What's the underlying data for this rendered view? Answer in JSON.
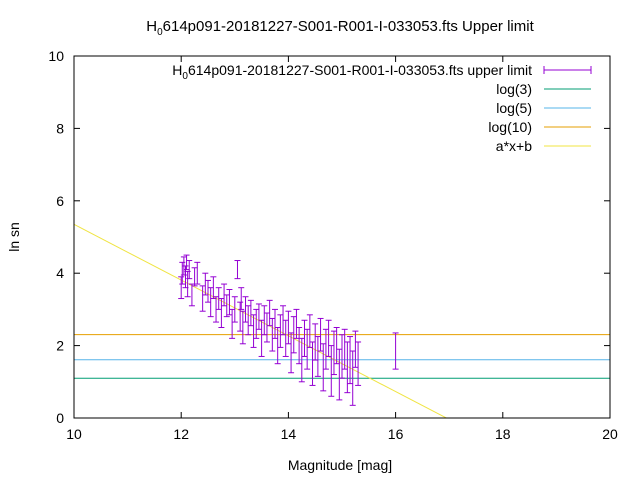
{
  "chart_data": {
    "type": "scatter",
    "title_parts": [
      "H",
      "0",
      "614p091-20181227-S001-R001-I-033053.fts Upper limit"
    ],
    "xlabel": "Magnitude [mag]",
    "ylabel": "ln sn",
    "xlim": [
      10,
      20
    ],
    "ylim": [
      0,
      10
    ],
    "x_ticks": [
      "10",
      "12",
      "14",
      "16",
      "18",
      "20"
    ],
    "y_ticks": [
      "0",
      "2",
      "4",
      "6",
      "8",
      "10"
    ],
    "grid": false,
    "legend_position": "top-right",
    "legend": [
      {
        "parts": [
          "H",
          "0",
          "614p091-20181227-S001-R001-I-033053.fts upper limit"
        ],
        "color": "#9400d3",
        "style": "errorbar"
      },
      {
        "parts": [
          "log(3)"
        ],
        "color": "#009e73",
        "style": "line"
      },
      {
        "parts": [
          "log(5)"
        ],
        "color": "#56b4e9",
        "style": "line"
      },
      {
        "parts": [
          "log(10)"
        ],
        "color": "#e69f00",
        "style": "line"
      },
      {
        "parts": [
          "a*x+b"
        ],
        "color": "#f0e442",
        "style": "line"
      }
    ],
    "hlines": [
      {
        "name": "log(3)",
        "y": 1.0986,
        "color": "#009e73"
      },
      {
        "name": "log(5)",
        "y": 1.6094,
        "color": "#56b4e9"
      },
      {
        "name": "log(10)",
        "y": 2.3026,
        "color": "#e69f00"
      }
    ],
    "fit_line": {
      "name": "a*x+b",
      "color": "#f0e442",
      "slope": -0.77,
      "intercept": 13.05
    },
    "series": [
      {
        "name": "H 0 614p091-20181227-S001-R001-I-033053.fts upper limit",
        "color": "#9400d3",
        "points": [
          [
            12.0,
            3.6,
            0.3
          ],
          [
            12.02,
            4.0,
            0.3
          ],
          [
            12.05,
            4.2,
            0.25
          ],
          [
            12.08,
            3.9,
            0.3
          ],
          [
            12.1,
            4.3,
            0.2
          ],
          [
            12.12,
            3.7,
            0.35
          ],
          [
            12.15,
            4.1,
            0.25
          ],
          [
            12.2,
            3.4,
            0.3
          ],
          [
            12.25,
            3.9,
            0.25
          ],
          [
            12.3,
            4.0,
            0.3
          ],
          [
            12.4,
            3.3,
            0.35
          ],
          [
            12.45,
            3.7,
            0.3
          ],
          [
            12.5,
            3.5,
            0.3
          ],
          [
            12.55,
            3.2,
            0.4
          ],
          [
            12.6,
            3.6,
            0.3
          ],
          [
            12.65,
            3.0,
            0.35
          ],
          [
            12.7,
            3.3,
            0.3
          ],
          [
            12.75,
            2.9,
            0.4
          ],
          [
            12.8,
            3.4,
            0.3
          ],
          [
            12.85,
            3.1,
            0.3
          ],
          [
            12.9,
            3.2,
            0.35
          ],
          [
            12.95,
            2.6,
            0.4
          ],
          [
            13.0,
            3.0,
            0.35
          ],
          [
            13.05,
            4.1,
            0.25
          ],
          [
            13.1,
            2.8,
            0.4
          ],
          [
            13.12,
            3.3,
            0.3
          ],
          [
            13.15,
            2.5,
            0.45
          ],
          [
            13.2,
            3.0,
            0.35
          ],
          [
            13.25,
            2.7,
            0.4
          ],
          [
            13.3,
            2.9,
            0.35
          ],
          [
            13.35,
            2.4,
            0.45
          ],
          [
            13.4,
            2.6,
            0.4
          ],
          [
            13.45,
            2.8,
            0.35
          ],
          [
            13.5,
            2.2,
            0.5
          ],
          [
            13.55,
            2.7,
            0.4
          ],
          [
            13.6,
            2.5,
            0.4
          ],
          [
            13.65,
            2.9,
            0.35
          ],
          [
            13.7,
            2.3,
            0.45
          ],
          [
            13.75,
            2.6,
            0.4
          ],
          [
            13.8,
            2.0,
            0.5
          ],
          [
            13.85,
            2.4,
            0.45
          ],
          [
            13.9,
            2.7,
            0.4
          ],
          [
            13.95,
            2.2,
            0.5
          ],
          [
            14.0,
            2.5,
            0.45
          ],
          [
            14.05,
            1.8,
            0.55
          ],
          [
            14.1,
            2.3,
            0.5
          ],
          [
            14.15,
            2.6,
            0.4
          ],
          [
            14.2,
            2.0,
            0.5
          ],
          [
            14.25,
            1.6,
            0.6
          ],
          [
            14.3,
            2.2,
            0.5
          ],
          [
            14.35,
            1.9,
            0.55
          ],
          [
            14.4,
            2.4,
            0.45
          ],
          [
            14.45,
            1.5,
            0.6
          ],
          [
            14.5,
            2.1,
            0.5
          ],
          [
            14.55,
            1.7,
            0.55
          ],
          [
            14.6,
            2.3,
            0.45
          ],
          [
            14.65,
            1.4,
            0.65
          ],
          [
            14.7,
            1.9,
            0.55
          ],
          [
            14.75,
            2.2,
            0.5
          ],
          [
            14.8,
            1.3,
            0.7
          ],
          [
            14.85,
            1.8,
            0.6
          ],
          [
            14.9,
            2.0,
            0.5
          ],
          [
            14.95,
            1.2,
            0.7
          ],
          [
            15.0,
            1.7,
            0.6
          ],
          [
            15.05,
            1.9,
            0.55
          ],
          [
            15.1,
            1.4,
            0.7
          ],
          [
            15.15,
            1.6,
            0.65
          ],
          [
            15.2,
            1.1,
            0.75
          ],
          [
            15.25,
            1.9,
            0.5
          ],
          [
            15.3,
            1.5,
            0.6
          ],
          [
            16.0,
            1.85,
            0.5
          ]
        ]
      }
    ]
  }
}
